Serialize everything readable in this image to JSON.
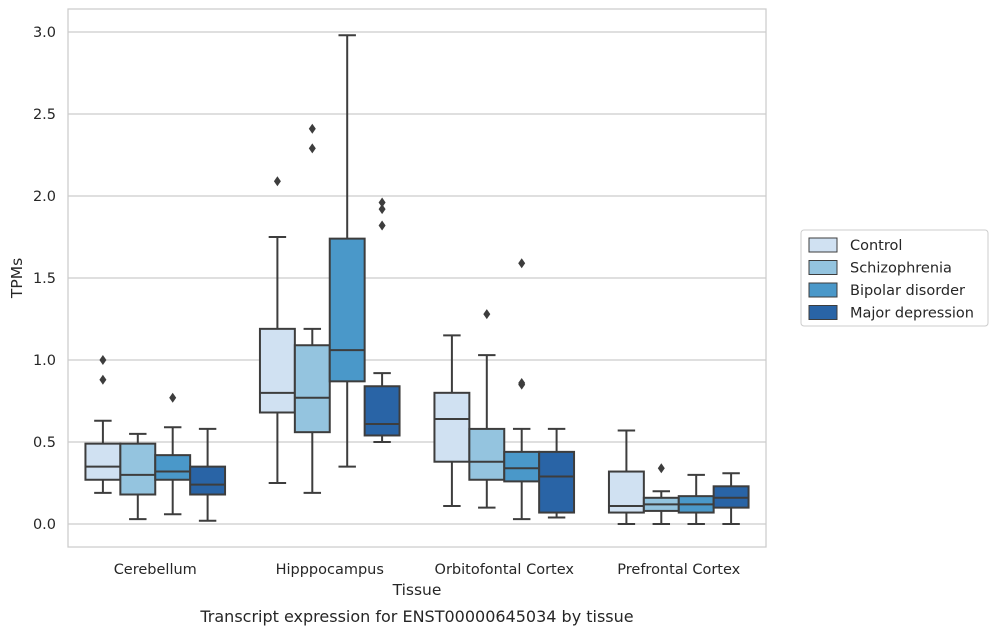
{
  "chart_data": {
    "type": "box",
    "caption": "Transcript expression for ENST00000645034 by tissue",
    "xlabel": "Tissue",
    "ylabel": "TPMs",
    "ylim": [
      -0.14,
      3.14
    ],
    "yticks": [
      0.0,
      0.5,
      1.0,
      1.5,
      2.0,
      2.5,
      3.0
    ],
    "ytick_labels": [
      "0.0",
      "0.5",
      "1.0",
      "1.5",
      "2.0",
      "2.5",
      "3.0"
    ],
    "grid": "horizontal",
    "legend_position": "right",
    "categories": [
      "Cerebellum",
      "Hipppocampus",
      "Orbitofontal Cortex",
      "Prefrontal Cortex"
    ],
    "series": [
      {
        "name": "Control",
        "color": "#d0e1f2",
        "boxes": [
          {
            "whislo": 0.19,
            "q1": 0.27,
            "med": 0.35,
            "q3": 0.49,
            "whishi": 0.63,
            "fliers": [
              0.88,
              1.0
            ]
          },
          {
            "whislo": 0.25,
            "q1": 0.68,
            "med": 0.8,
            "q3": 1.19,
            "whishi": 1.75,
            "fliers": [
              2.09
            ]
          },
          {
            "whislo": 0.11,
            "q1": 0.38,
            "med": 0.64,
            "q3": 0.8,
            "whishi": 1.15,
            "fliers": []
          },
          {
            "whislo": 0.0,
            "q1": 0.07,
            "med": 0.11,
            "q3": 0.32,
            "whishi": 0.57,
            "fliers": []
          }
        ]
      },
      {
        "name": "Schizophrenia",
        "color": "#94c4df",
        "boxes": [
          {
            "whislo": 0.03,
            "q1": 0.18,
            "med": 0.3,
            "q3": 0.49,
            "whishi": 0.55,
            "fliers": []
          },
          {
            "whislo": 0.19,
            "q1": 0.56,
            "med": 0.77,
            "q3": 1.09,
            "whishi": 1.19,
            "fliers": [
              2.29,
              2.41
            ]
          },
          {
            "whislo": 0.1,
            "q1": 0.27,
            "med": 0.38,
            "q3": 0.58,
            "whishi": 1.03,
            "fliers": [
              1.28
            ]
          },
          {
            "whislo": 0.0,
            "q1": 0.08,
            "med": 0.12,
            "q3": 0.16,
            "whishi": 0.2,
            "fliers": [
              0.34
            ]
          }
        ]
      },
      {
        "name": "Bipolar disorder",
        "color": "#4a98c9",
        "boxes": [
          {
            "whislo": 0.06,
            "q1": 0.27,
            "med": 0.32,
            "q3": 0.42,
            "whishi": 0.59,
            "fliers": [
              0.77
            ]
          },
          {
            "whislo": 0.35,
            "q1": 0.87,
            "med": 1.06,
            "q3": 1.74,
            "whishi": 2.98,
            "fliers": []
          },
          {
            "whislo": 0.03,
            "q1": 0.26,
            "med": 0.34,
            "q3": 0.44,
            "whishi": 0.58,
            "fliers": [
              0.85,
              0.86,
              1.59
            ]
          },
          {
            "whislo": 0.0,
            "q1": 0.07,
            "med": 0.12,
            "q3": 0.17,
            "whishi": 0.3,
            "fliers": []
          }
        ]
      },
      {
        "name": "Major depression",
        "color": "#2964a6",
        "boxes": [
          {
            "whislo": 0.02,
            "q1": 0.18,
            "med": 0.24,
            "q3": 0.35,
            "whishi": 0.58,
            "fliers": []
          },
          {
            "whislo": 0.5,
            "q1": 0.54,
            "med": 0.61,
            "q3": 0.84,
            "whishi": 0.92,
            "fliers": [
              1.82,
              1.92,
              1.96
            ]
          },
          {
            "whislo": 0.04,
            "q1": 0.07,
            "med": 0.29,
            "q3": 0.44,
            "whishi": 0.58,
            "fliers": []
          },
          {
            "whislo": 0.0,
            "q1": 0.1,
            "med": 0.16,
            "q3": 0.23,
            "whishi": 0.31,
            "fliers": []
          }
        ]
      }
    ]
  }
}
